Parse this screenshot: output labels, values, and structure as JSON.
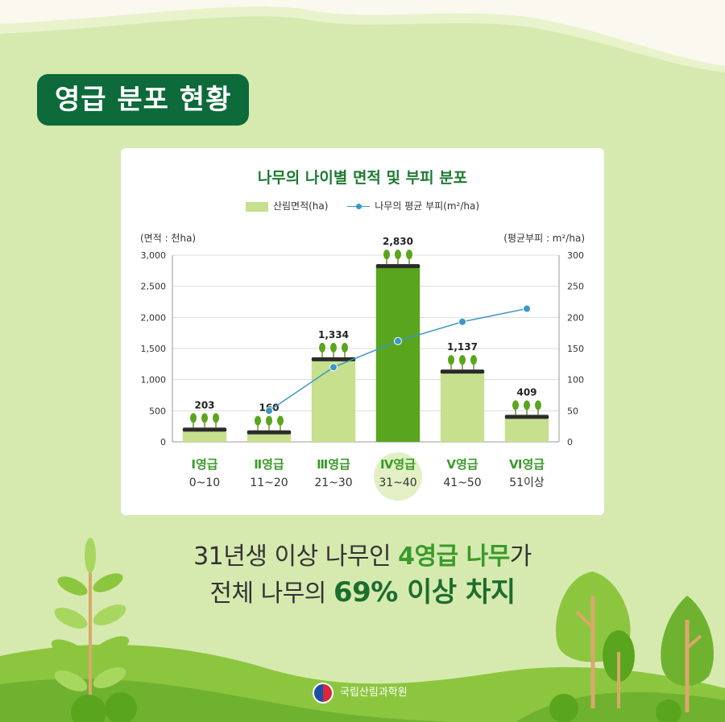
{
  "title": "영급 분포 현황",
  "chart_data": {
    "type": "bar",
    "title": "나무의 나이별 면적 및 부피 분포",
    "legend": [
      "산림면적(ha)",
      "나무의 평균 부피(m²/ha)"
    ],
    "y_left_unit": "(면적 : 천ha)",
    "y_right_unit": "(평균부피 : m²/ha)",
    "ylim_left": [
      0,
      3000
    ],
    "ylim_right": [
      0,
      300
    ],
    "y_left_ticks": [
      "0",
      "500",
      "1,000",
      "1,500",
      "2,000",
      "2,500",
      "3,000"
    ],
    "y_right_ticks": [
      "0",
      "50",
      "100",
      "150",
      "200",
      "250",
      "300"
    ],
    "categories": [
      "Ⅰ영급",
      "Ⅱ영급",
      "Ⅲ영급",
      "Ⅳ영급",
      "Ⅴ영급",
      "Ⅵ영급"
    ],
    "category_ranges": [
      "0~10",
      "11~20",
      "21~30",
      "31~40",
      "41~50",
      "51이상"
    ],
    "highlight_index": 3,
    "series": [
      {
        "name": "산림면적(ha)",
        "type": "bar",
        "values": [
          203,
          160,
          1334,
          2830,
          1137,
          409
        ],
        "labels": [
          "203",
          "160",
          "1,334",
          "2,830",
          "1,137",
          "409"
        ]
      },
      {
        "name": "나무의 평균 부피(m²/ha)",
        "type": "line",
        "values": [
          null,
          50,
          120,
          162,
          193,
          214
        ]
      }
    ],
    "colors": {
      "bar": "#c6e08e",
      "bar_highlight": "#5aa51e",
      "line": "#3b97c4",
      "grid": "#dddddd"
    }
  },
  "caption": {
    "line1_pre": "31년생 이상 나무인 ",
    "line1_hl": "4영급 나무",
    "line1_post": "가",
    "line2_pre": "전체 나무의 ",
    "line2_hl": "69% 이상 차지"
  },
  "footer": {
    "org": "국립산림과학원"
  }
}
